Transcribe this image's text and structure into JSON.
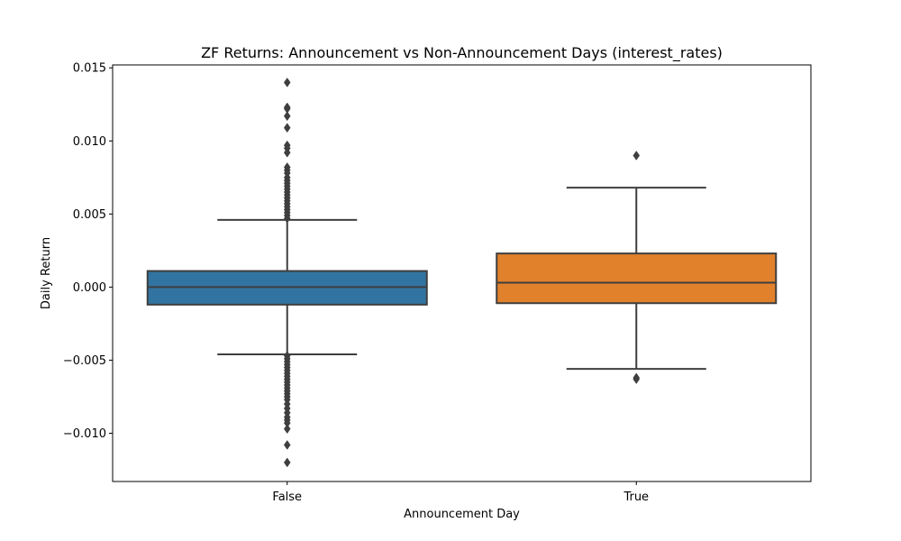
{
  "chart_data": {
    "type": "box",
    "title": "ZF Returns: Announcement vs Non-Announcement Days (interest_rates)",
    "xlabel": "Announcement Day",
    "ylabel": "Daily Return",
    "ylim": [
      -0.0133,
      0.0152
    ],
    "yticks": [
      -0.01,
      -0.005,
      0.0,
      0.005,
      0.01,
      0.015
    ],
    "ytick_labels": [
      "−0.010",
      "−0.005",
      "0.000",
      "0.005",
      "0.010",
      "0.015"
    ],
    "grid": false,
    "categories": [
      "False",
      "True"
    ],
    "boxes": [
      {
        "category": "False",
        "color": "#3274a1",
        "whisker_low": -0.0046,
        "q1": -0.0012,
        "median": 0.0,
        "q3": 0.0011,
        "whisker_high": 0.0046,
        "outliers": [
          0.014,
          0.0123,
          0.0122,
          0.0117,
          0.0109,
          0.0097,
          0.0095,
          0.0092,
          0.0082,
          0.008,
          0.0078,
          0.0075,
          0.0073,
          0.0071,
          0.0069,
          0.0067,
          0.0065,
          0.0063,
          0.0061,
          0.0059,
          0.0057,
          0.0055,
          0.0053,
          0.0051,
          0.0049,
          0.0047,
          -0.0047,
          -0.0049,
          -0.0051,
          -0.0053,
          -0.0055,
          -0.0057,
          -0.0059,
          -0.0061,
          -0.0063,
          -0.0065,
          -0.0067,
          -0.0069,
          -0.0071,
          -0.0073,
          -0.0075,
          -0.0077,
          -0.008,
          -0.0083,
          -0.0086,
          -0.0089,
          -0.0091,
          -0.0093,
          -0.0097,
          -0.0108,
          -0.012
        ]
      },
      {
        "category": "True",
        "color": "#e1812c",
        "whisker_low": -0.0056,
        "q1": -0.0011,
        "median": 0.0003,
        "q3": 0.0023,
        "whisker_high": 0.0068,
        "outliers": [
          0.009,
          -0.0062,
          -0.0063
        ]
      }
    ]
  }
}
